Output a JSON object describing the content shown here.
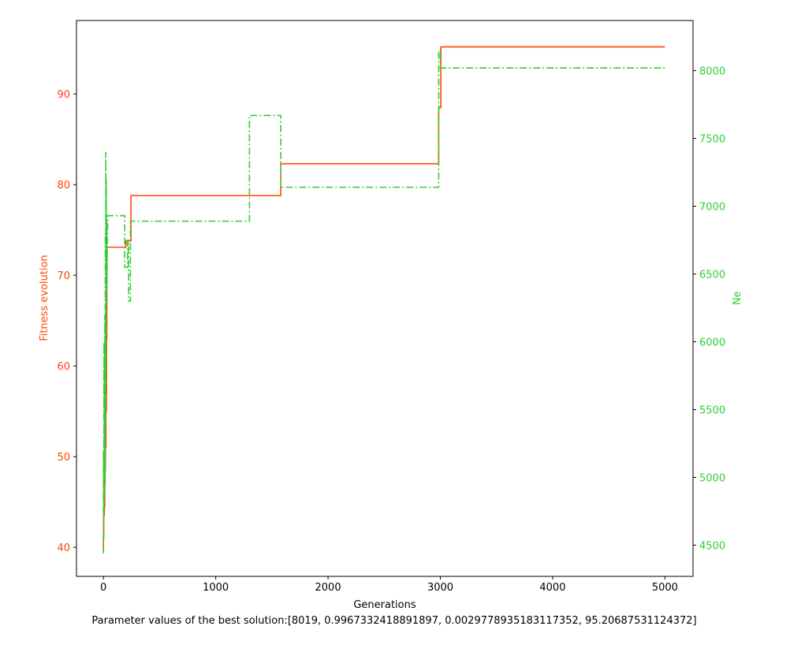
{
  "chart_data": {
    "type": "line",
    "xlabel": "Generations",
    "ylabel_left": "Fitness evolution",
    "ylabel_right": "Ne",
    "caption": "Parameter values of the best solution:[8019, 0.9967332418891897, 0.002977893518311735​2, 95.20687531124372]",
    "xlim": [
      -240,
      5250
    ],
    "ylim_left": [
      36.8,
      98.1
    ],
    "ylim_right": [
      4270,
      8370
    ],
    "xticks": [
      0,
      1000,
      2000,
      3000,
      4000,
      5000
    ],
    "yticks_left": [
      40,
      50,
      60,
      70,
      80,
      90
    ],
    "yticks_right": [
      4500,
      5000,
      5500,
      6000,
      6500,
      7000,
      7500,
      8000
    ],
    "colors": {
      "fitness": "#ff4500",
      "ne": "#32cd32",
      "axis": "#000000"
    },
    "series": [
      {
        "name": "Fitness evolution",
        "axis": "left",
        "style": "solid",
        "points": [
          [
            0,
            39.5
          ],
          [
            0,
            41
          ],
          [
            3,
            41
          ],
          [
            3,
            43.5
          ],
          [
            8,
            43.5
          ],
          [
            8,
            44.5
          ],
          [
            12,
            44.5
          ],
          [
            12,
            47
          ],
          [
            15,
            47
          ],
          [
            15,
            48.5
          ],
          [
            18,
            48.5
          ],
          [
            18,
            51
          ],
          [
            22,
            51
          ],
          [
            22,
            55
          ],
          [
            26,
            55
          ],
          [
            26,
            57
          ],
          [
            28,
            57
          ],
          [
            28,
            63
          ],
          [
            30,
            63
          ],
          [
            30,
            71
          ],
          [
            32,
            71
          ],
          [
            32,
            73.1
          ],
          [
            200,
            73.1
          ],
          [
            200,
            73.8
          ],
          [
            245,
            73.8
          ],
          [
            245,
            78.8
          ],
          [
            1580,
            78.8
          ],
          [
            1580,
            82.3
          ],
          [
            2985,
            82.3
          ],
          [
            2985,
            88.5
          ],
          [
            3005,
            88.5
          ],
          [
            3005,
            95.2
          ],
          [
            5000,
            95.2
          ]
        ]
      },
      {
        "name": "Ne",
        "axis": "right",
        "style": "dashdot",
        "points": [
          [
            0,
            4440
          ],
          [
            0,
            5200
          ],
          [
            3,
            4700
          ],
          [
            5,
            6000
          ],
          [
            7,
            4800
          ],
          [
            9,
            5800
          ],
          [
            11,
            4900
          ],
          [
            13,
            6200
          ],
          [
            15,
            5000
          ],
          [
            17,
            6800
          ],
          [
            19,
            5400
          ],
          [
            21,
            7400
          ],
          [
            23,
            5700
          ],
          [
            25,
            7200
          ],
          [
            27,
            6300
          ],
          [
            29,
            6900
          ],
          [
            31,
            6400
          ],
          [
            33,
            6600
          ],
          [
            35,
            6750
          ],
          [
            38,
            6930
          ],
          [
            190,
            6930
          ],
          [
            190,
            6550
          ],
          [
            215,
            6550
          ],
          [
            215,
            6750
          ],
          [
            225,
            6750
          ],
          [
            225,
            6300
          ],
          [
            240,
            6300
          ],
          [
            240,
            6890
          ],
          [
            1300,
            6890
          ],
          [
            1300,
            7670
          ],
          [
            1580,
            7670
          ],
          [
            1580,
            7140
          ],
          [
            2985,
            7140
          ],
          [
            2985,
            8150
          ],
          [
            3000,
            8150
          ],
          [
            3000,
            8020
          ],
          [
            5000,
            8020
          ]
        ]
      }
    ]
  }
}
